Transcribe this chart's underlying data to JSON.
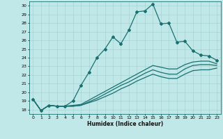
{
  "xlabel": "Humidex (Indice chaleur)",
  "bg_color": "#c0e8e8",
  "line_color": "#1a7070",
  "xlim": [
    -0.5,
    23.5
  ],
  "ylim": [
    17.5,
    30.5
  ],
  "xticks": [
    0,
    1,
    2,
    3,
    4,
    5,
    6,
    7,
    8,
    9,
    10,
    11,
    12,
    13,
    14,
    15,
    16,
    17,
    18,
    19,
    20,
    21,
    22,
    23
  ],
  "yticks": [
    18,
    19,
    20,
    21,
    22,
    23,
    24,
    25,
    26,
    27,
    28,
    29,
    30
  ],
  "series": [
    {
      "x": [
        0,
        1,
        2,
        3,
        4,
        5,
        6,
        7,
        8,
        9,
        10,
        11,
        12,
        13,
        14,
        15,
        16,
        17,
        18,
        19,
        20,
        21,
        22,
        23
      ],
      "y": [
        19.2,
        17.9,
        18.5,
        18.4,
        18.4,
        19.0,
        20.8,
        22.3,
        24.0,
        25.0,
        26.4,
        25.6,
        27.2,
        29.3,
        29.4,
        30.2,
        27.9,
        28.0,
        25.8,
        25.9,
        24.8,
        24.3,
        24.2,
        23.7
      ],
      "marker": "D",
      "markersize": 2.0
    },
    {
      "x": [
        0,
        1,
        2,
        3,
        4,
        5,
        6,
        7,
        8,
        9,
        10,
        11,
        12,
        13,
        14,
        15,
        16,
        17,
        18,
        19,
        20,
        21,
        22,
        23
      ],
      "y": [
        19.2,
        17.9,
        18.5,
        18.4,
        18.4,
        18.5,
        18.6,
        19.1,
        19.6,
        20.1,
        20.6,
        21.1,
        21.6,
        22.1,
        22.6,
        23.1,
        22.9,
        22.7,
        22.7,
        23.2,
        23.5,
        23.6,
        23.6,
        23.3
      ],
      "marker": null,
      "markersize": 0
    },
    {
      "x": [
        0,
        1,
        2,
        3,
        4,
        5,
        6,
        7,
        8,
        9,
        10,
        11,
        12,
        13,
        14,
        15,
        16,
        17,
        18,
        19,
        20,
        21,
        22,
        23
      ],
      "y": [
        19.2,
        17.9,
        18.5,
        18.4,
        18.4,
        18.4,
        18.5,
        18.9,
        19.3,
        19.8,
        20.3,
        20.8,
        21.2,
        21.7,
        22.2,
        22.6,
        22.3,
        22.1,
        22.1,
        22.7,
        23.1,
        23.2,
        23.2,
        23.1
      ],
      "marker": null,
      "markersize": 0
    },
    {
      "x": [
        0,
        1,
        2,
        3,
        4,
        5,
        6,
        7,
        8,
        9,
        10,
        11,
        12,
        13,
        14,
        15,
        16,
        17,
        18,
        19,
        20,
        21,
        22,
        23
      ],
      "y": [
        19.2,
        17.9,
        18.5,
        18.4,
        18.4,
        18.4,
        18.5,
        18.8,
        19.1,
        19.5,
        19.9,
        20.4,
        20.8,
        21.3,
        21.7,
        22.1,
        21.8,
        21.6,
        21.6,
        22.1,
        22.5,
        22.6,
        22.6,
        22.8
      ],
      "marker": null,
      "markersize": 0
    }
  ]
}
